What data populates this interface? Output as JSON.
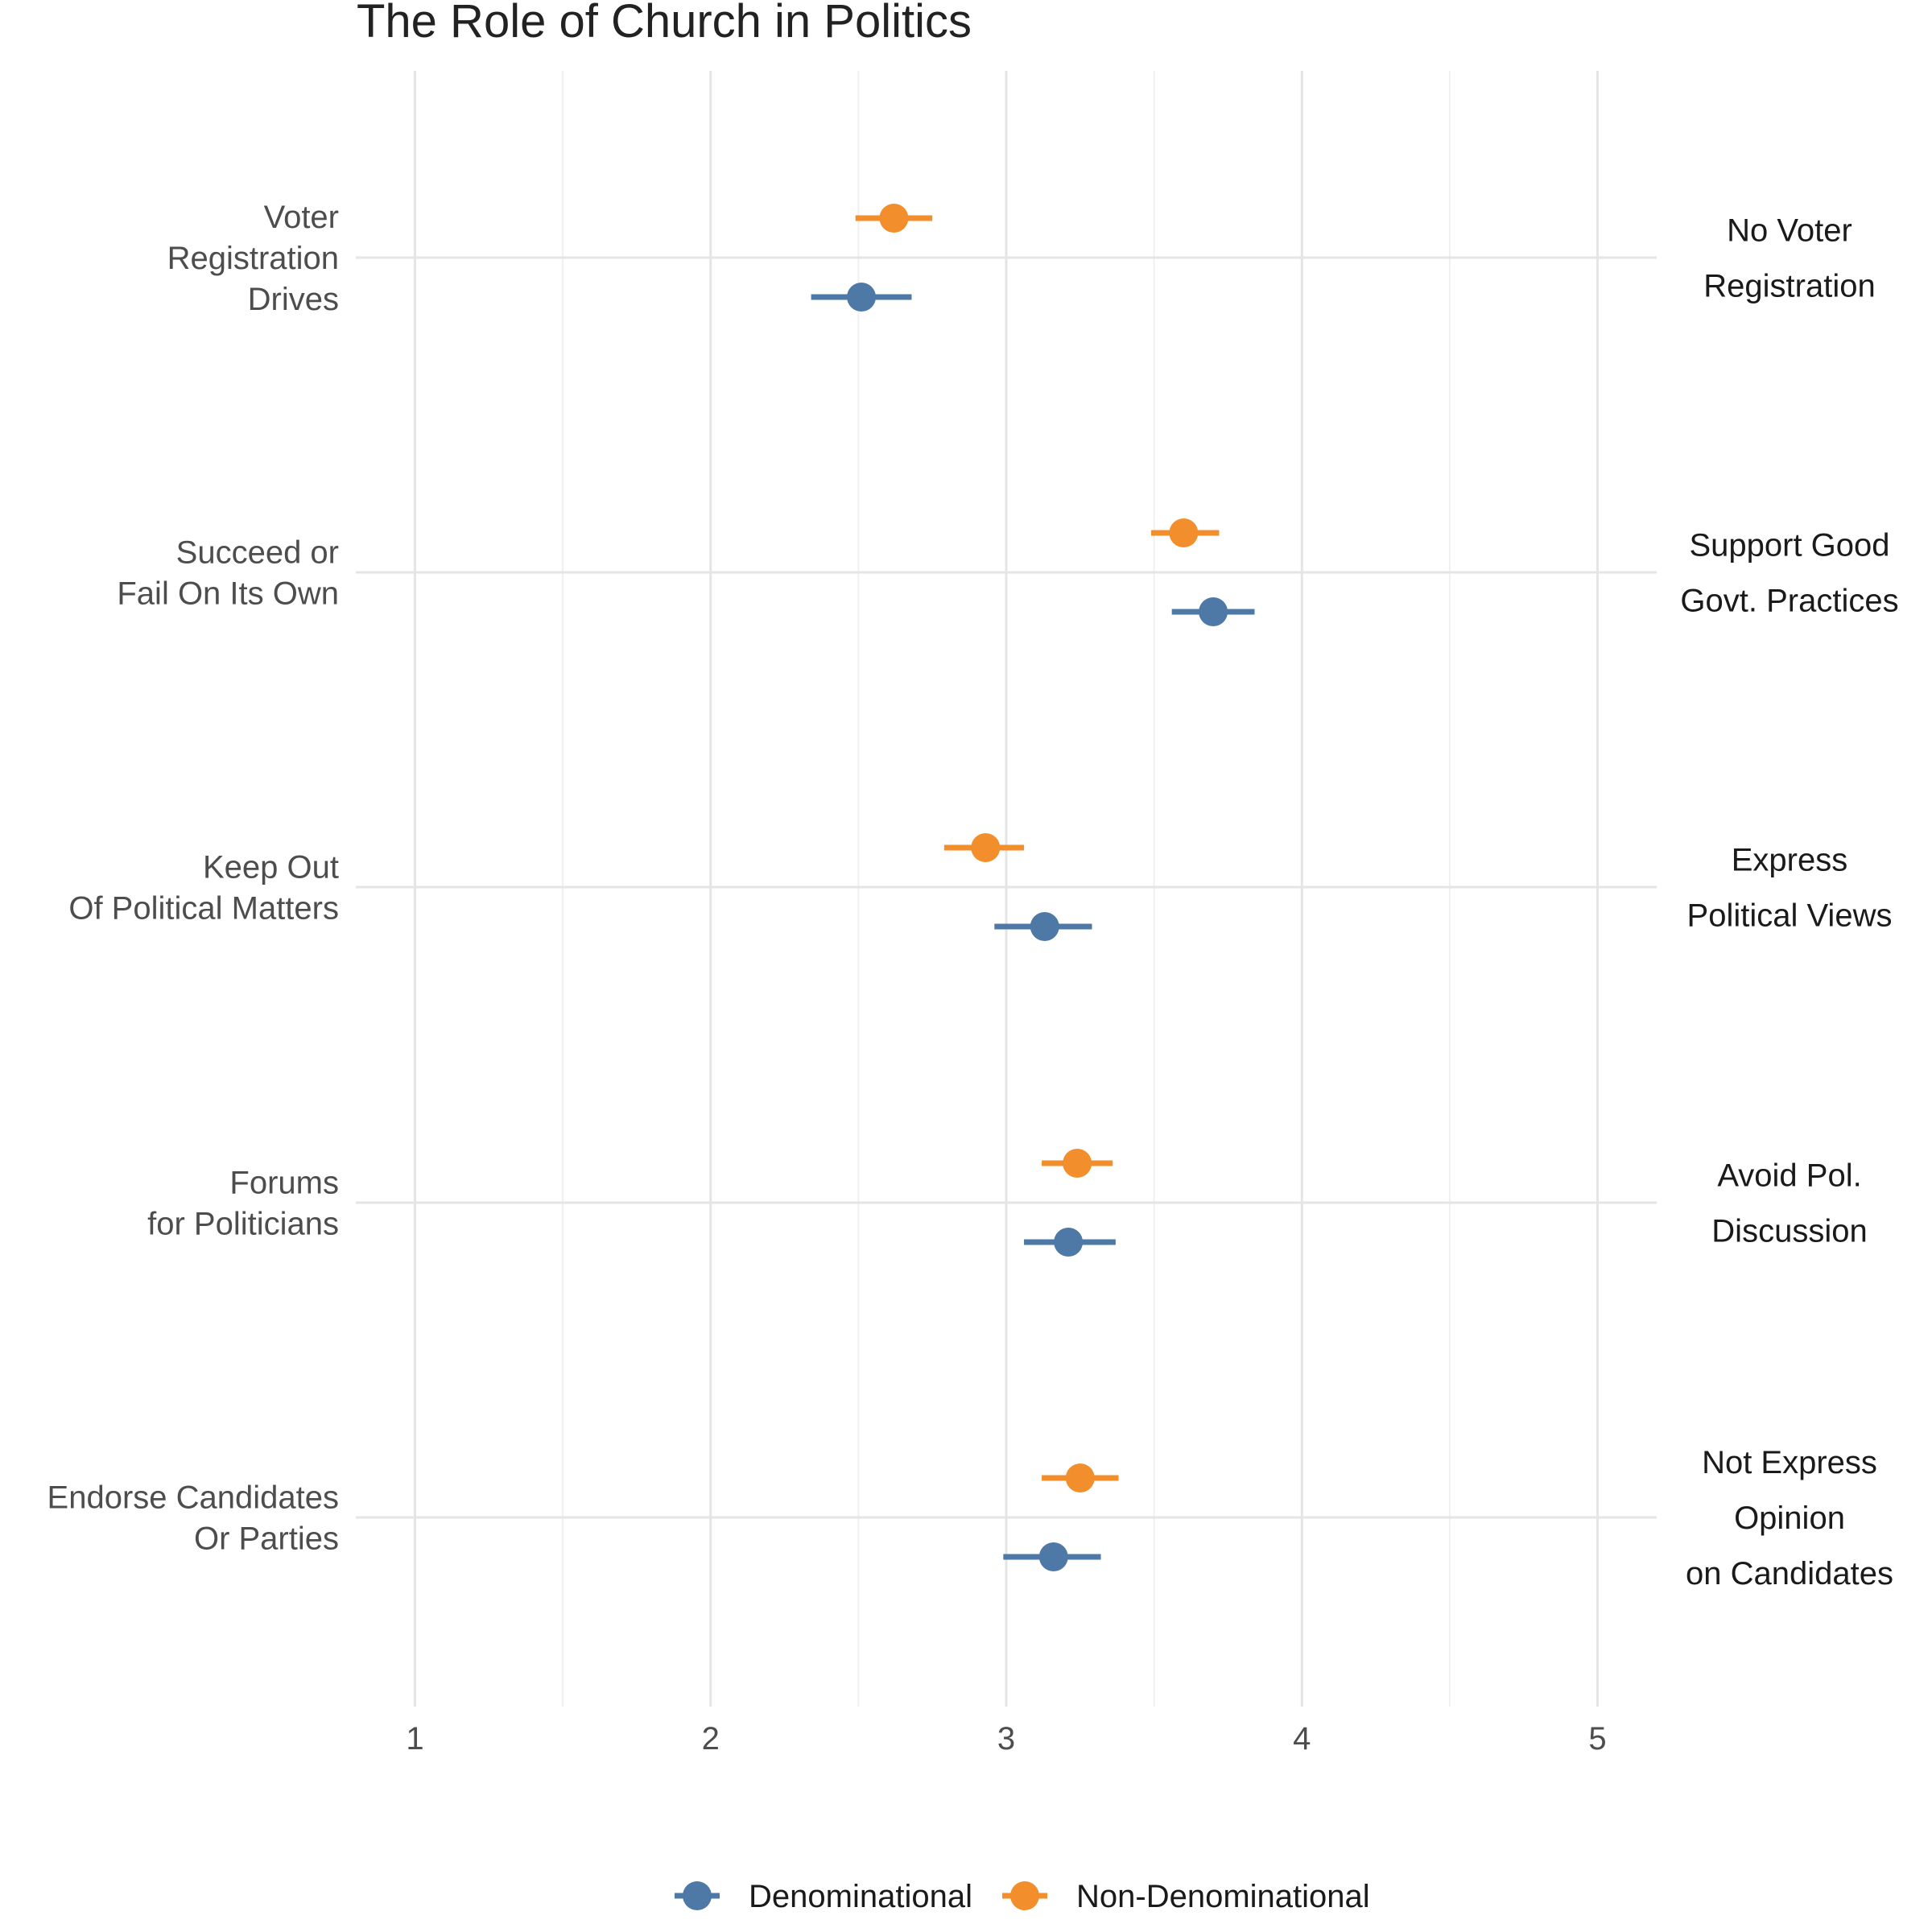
{
  "chart_data": {
    "type": "dot-errorbar",
    "title": "The Role of Church in Politics",
    "xlim": [
      0.8,
      5.2
    ],
    "xticks": [
      1,
      2,
      3,
      4,
      5
    ],
    "grid": true,
    "legend_position": "bottom",
    "categories": [
      {
        "left": [
          "Voter",
          "Registration",
          "Drives"
        ],
        "right": [
          "No Voter",
          "Registration"
        ]
      },
      {
        "left": [
          "Succeed or",
          "Fail On Its Own"
        ],
        "right": [
          "Support Good",
          "Govt. Practices"
        ]
      },
      {
        "left": [
          "Keep Out",
          "Of Political Matters"
        ],
        "right": [
          "Express",
          "Political Views"
        ]
      },
      {
        "left": [
          "Forums",
          "for Politicians"
        ],
        "right": [
          "Avoid Pol.",
          "Discussion"
        ]
      },
      {
        "left": [
          "Endorse Candidates",
          "Or Parties"
        ],
        "right": [
          "Not Express",
          "Opinion",
          "on Candidates"
        ]
      }
    ],
    "series": [
      {
        "name": "Non-Denominational",
        "color": "#f28e2b",
        "values": [
          2.62,
          3.6,
          2.93,
          3.24,
          3.25
        ],
        "lower": [
          2.49,
          3.49,
          2.79,
          3.12,
          3.12
        ],
        "upper": [
          2.75,
          3.72,
          3.06,
          3.36,
          3.38
        ]
      },
      {
        "name": "Denominational",
        "color": "#4e79a7",
        "values": [
          2.51,
          3.7,
          3.13,
          3.21,
          3.16
        ],
        "lower": [
          2.34,
          3.56,
          2.96,
          3.06,
          2.99
        ],
        "upper": [
          2.68,
          3.84,
          3.29,
          3.37,
          3.32
        ]
      }
    ],
    "legend": [
      "Denominational",
      "Non-Denominational"
    ]
  }
}
